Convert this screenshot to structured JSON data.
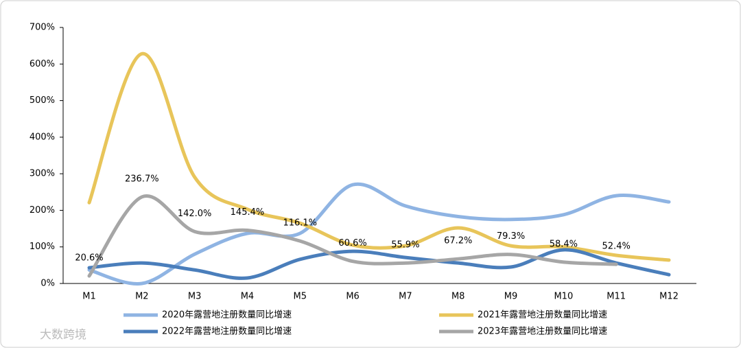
{
  "chart_data": {
    "type": "line",
    "categories": [
      "M1",
      "M2",
      "M3",
      "M4",
      "M5",
      "M6",
      "M7",
      "M8",
      "M9",
      "M10",
      "M11",
      "M12"
    ],
    "ylim": [
      0,
      700
    ],
    "yticks": [
      {
        "value": 0,
        "label": "0%"
      },
      {
        "value": 100,
        "label": "100%"
      },
      {
        "value": 200,
        "label": "200%"
      },
      {
        "value": 300,
        "label": "300%"
      },
      {
        "value": 400,
        "label": "400%"
      },
      {
        "value": 500,
        "label": "500%"
      },
      {
        "value": 600,
        "label": "600%"
      },
      {
        "value": 700,
        "label": "700%"
      }
    ],
    "grid": false,
    "smooth": true,
    "legend": "bottom",
    "series": [
      {
        "name": "2020年露营地注册数量同比增速",
        "color": "#8fb4e3",
        "values": [
          37,
          0,
          80,
          137,
          137,
          270,
          212,
          183,
          175,
          188,
          240,
          223
        ]
      },
      {
        "name": "2021年露营地注册数量同比增速",
        "color": "#e8c55a",
        "values": [
          221,
          628,
          291,
          203,
          165,
          105,
          103,
          152,
          103,
          100,
          77,
          64
        ]
      },
      {
        "name": "2022年露营地注册数量同比增速",
        "color": "#4a7ebb",
        "values": [
          43,
          56,
          37,
          15,
          66,
          88,
          71,
          56,
          45,
          92,
          56,
          24
        ]
      },
      {
        "name": "2023年露营地注册数量同比增速",
        "color": "#a6a6a6",
        "values": [
          20.6,
          236.7,
          142.0,
          145.4,
          116.1,
          60.6,
          55.9,
          67.2,
          79.3,
          58.4,
          52.4,
          null
        ],
        "value_labels": [
          "20.6%",
          "236.7%",
          "142.0%",
          "145.4%",
          "116.1%",
          "60.6%",
          "55.9%",
          "67.2%",
          "79.3%",
          "58.4%",
          "52.4%",
          null
        ]
      }
    ],
    "watermark": "大数跨境"
  }
}
